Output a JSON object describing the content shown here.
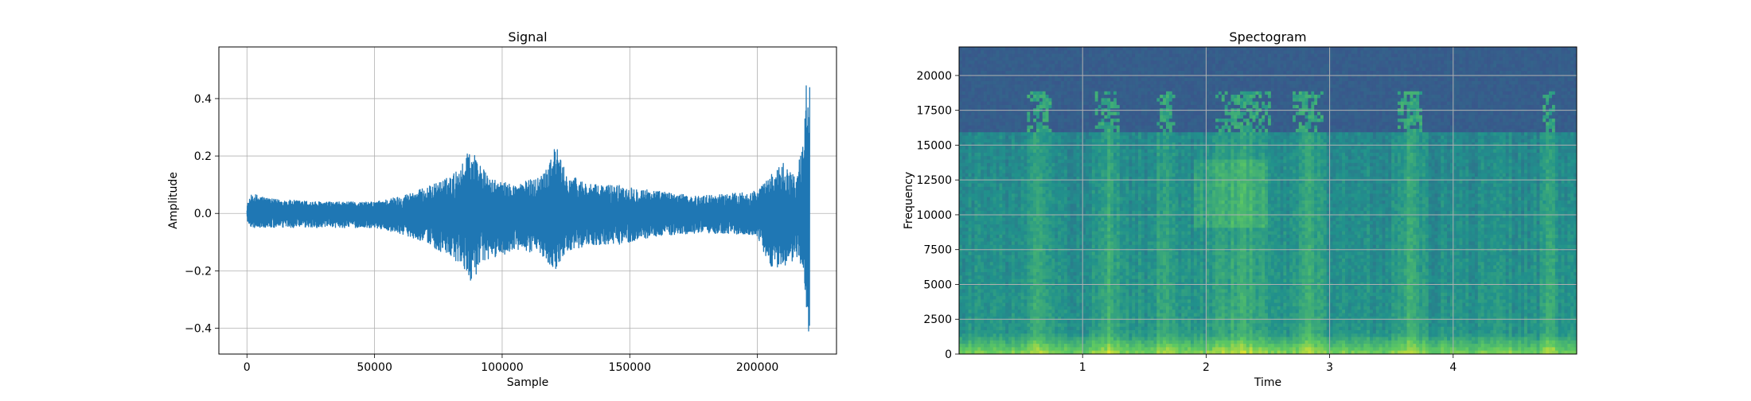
{
  "chart_data": [
    {
      "type": "line",
      "title": "Signal",
      "xlabel": "Sample",
      "ylabel": "Amplitude",
      "xlim": [
        -11000,
        231000
      ],
      "ylim": [
        -0.49,
        0.58
      ],
      "xticks": [
        0,
        50000,
        100000,
        150000,
        200000
      ],
      "xtick_labels": [
        "0",
        "50000",
        "100000",
        "150000",
        "200000"
      ],
      "yticks": [
        -0.4,
        -0.2,
        0.0,
        0.2,
        0.4
      ],
      "ytick_labels": [
        "−0.4",
        "−0.2",
        "0.0",
        "0.2",
        "0.4"
      ],
      "grid": true,
      "color": "#1f77b4",
      "x_range": [
        0,
        220500
      ],
      "envelope": {
        "x": [
          0,
          2000,
          10000,
          30000,
          50000,
          60000,
          70000,
          80000,
          85000,
          87000,
          95000,
          105000,
          115000,
          121000,
          125000,
          135000,
          145000,
          160000,
          175000,
          190000,
          200000,
          205000,
          210000,
          215000,
          218000,
          219500,
          220500
        ],
        "upper": [
          0.03,
          0.07,
          0.05,
          0.04,
          0.04,
          0.06,
          0.09,
          0.13,
          0.18,
          0.24,
          0.12,
          0.1,
          0.13,
          0.24,
          0.14,
          0.1,
          0.1,
          0.08,
          0.06,
          0.07,
          0.08,
          0.13,
          0.18,
          0.13,
          0.25,
          0.53,
          0.5
        ],
        "lower": [
          -0.03,
          -0.05,
          -0.05,
          -0.05,
          -0.05,
          -0.07,
          -0.1,
          -0.16,
          -0.19,
          -0.24,
          -0.16,
          -0.13,
          -0.14,
          -0.2,
          -0.13,
          -0.11,
          -0.11,
          -0.08,
          -0.07,
          -0.07,
          -0.08,
          -0.19,
          -0.19,
          -0.16,
          -0.19,
          -0.43,
          -0.4
        ]
      }
    },
    {
      "type": "heatmap",
      "title": "Spectogram",
      "xlabel": "Time",
      "ylabel": "Frequency",
      "xlim": [
        0,
        5.0
      ],
      "ylim": [
        0,
        22050
      ],
      "xticks": [
        1,
        2,
        3,
        4
      ],
      "xtick_labels": [
        "1",
        "2",
        "3",
        "4"
      ],
      "yticks": [
        0,
        2500,
        5000,
        7500,
        10000,
        12500,
        15000,
        17500,
        20000
      ],
      "ytick_labels": [
        "0",
        "2500",
        "5000",
        "7500",
        "10000",
        "12500",
        "15000",
        "17500",
        "20000"
      ],
      "grid": true,
      "colormap": "viridis",
      "cutoff_frequency": 16000,
      "burst_frequency": 18800,
      "active_time_ranges": [
        [
          0.55,
          0.75
        ],
        [
          1.1,
          1.3
        ],
        [
          1.6,
          1.75
        ],
        [
          2.0,
          2.6
        ],
        [
          2.7,
          2.95
        ],
        [
          3.55,
          3.75
        ],
        [
          4.75,
          4.8
        ]
      ]
    }
  ]
}
